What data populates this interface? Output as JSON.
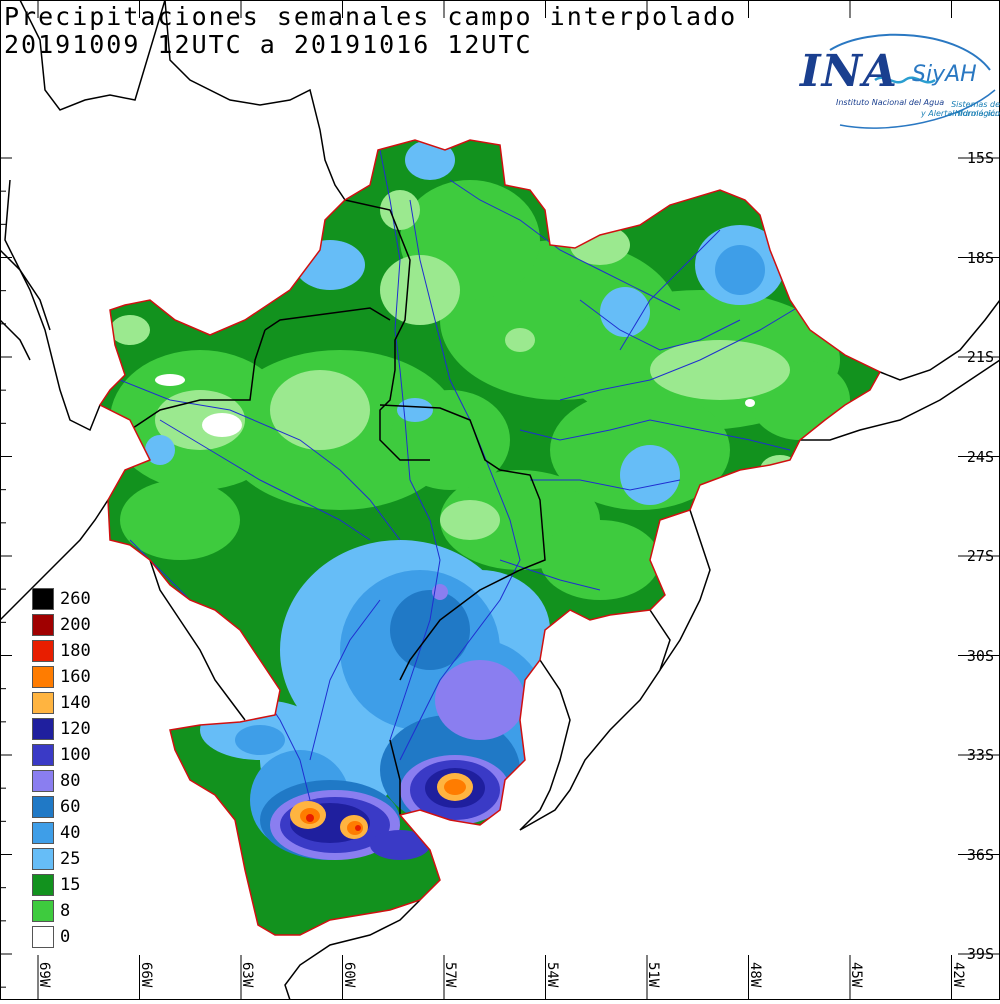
{
  "title": {
    "line1": "Precipitaciones semanales campo interpolado",
    "line2": "20191009 12UTC a 20191016 12UTC"
  },
  "logo": {
    "main": "INA",
    "brand": "SiyAH",
    "subtitle": "Instituto Nacional del Agua",
    "tagline1": "Sistemas de Información",
    "tagline2": "y Alerta Hidrológico"
  },
  "chart_data": {
    "type": "heatmap",
    "title": "Precipitaciones semanales campo interpolado",
    "lat_ticks": [
      "15S",
      "18S",
      "21S",
      "24S",
      "27S",
      "30S",
      "33S",
      "36S",
      "39S"
    ],
    "lon_ticks": [
      "69W",
      "66W",
      "63W",
      "60W",
      "57W",
      "54W",
      "51W",
      "48W",
      "45W",
      "42W"
    ],
    "legend": [
      {
        "label": "260",
        "color": "#000000"
      },
      {
        "label": "200",
        "color": "#a00000"
      },
      {
        "label": "180",
        "color": "#e81e00"
      },
      {
        "label": "160",
        "color": "#ff7c00"
      },
      {
        "label": "140",
        "color": "#ffb440"
      },
      {
        "label": "120",
        "color": "#1f1f9e"
      },
      {
        "label": "100",
        "color": "#3a3ac6"
      },
      {
        "label": "80",
        "color": "#8a7ef0"
      },
      {
        "label": "60",
        "color": "#2079c6"
      },
      {
        "label": "40",
        "color": "#3e9ee8"
      },
      {
        "label": "25",
        "color": "#66bdf7"
      },
      {
        "label": "15",
        "color": "#12921e"
      },
      {
        "label": "8",
        "color": "#3ecb3e"
      },
      {
        "label": "0",
        "color": "#ffffff"
      }
    ],
    "maxima": [
      {
        "lat": 34.8,
        "lon": 60.8,
        "class": "160"
      },
      {
        "lat": 35.1,
        "lon": 59.6,
        "class": "160"
      },
      {
        "lat": 34.0,
        "lon": 57.4,
        "class": "160"
      }
    ]
  }
}
